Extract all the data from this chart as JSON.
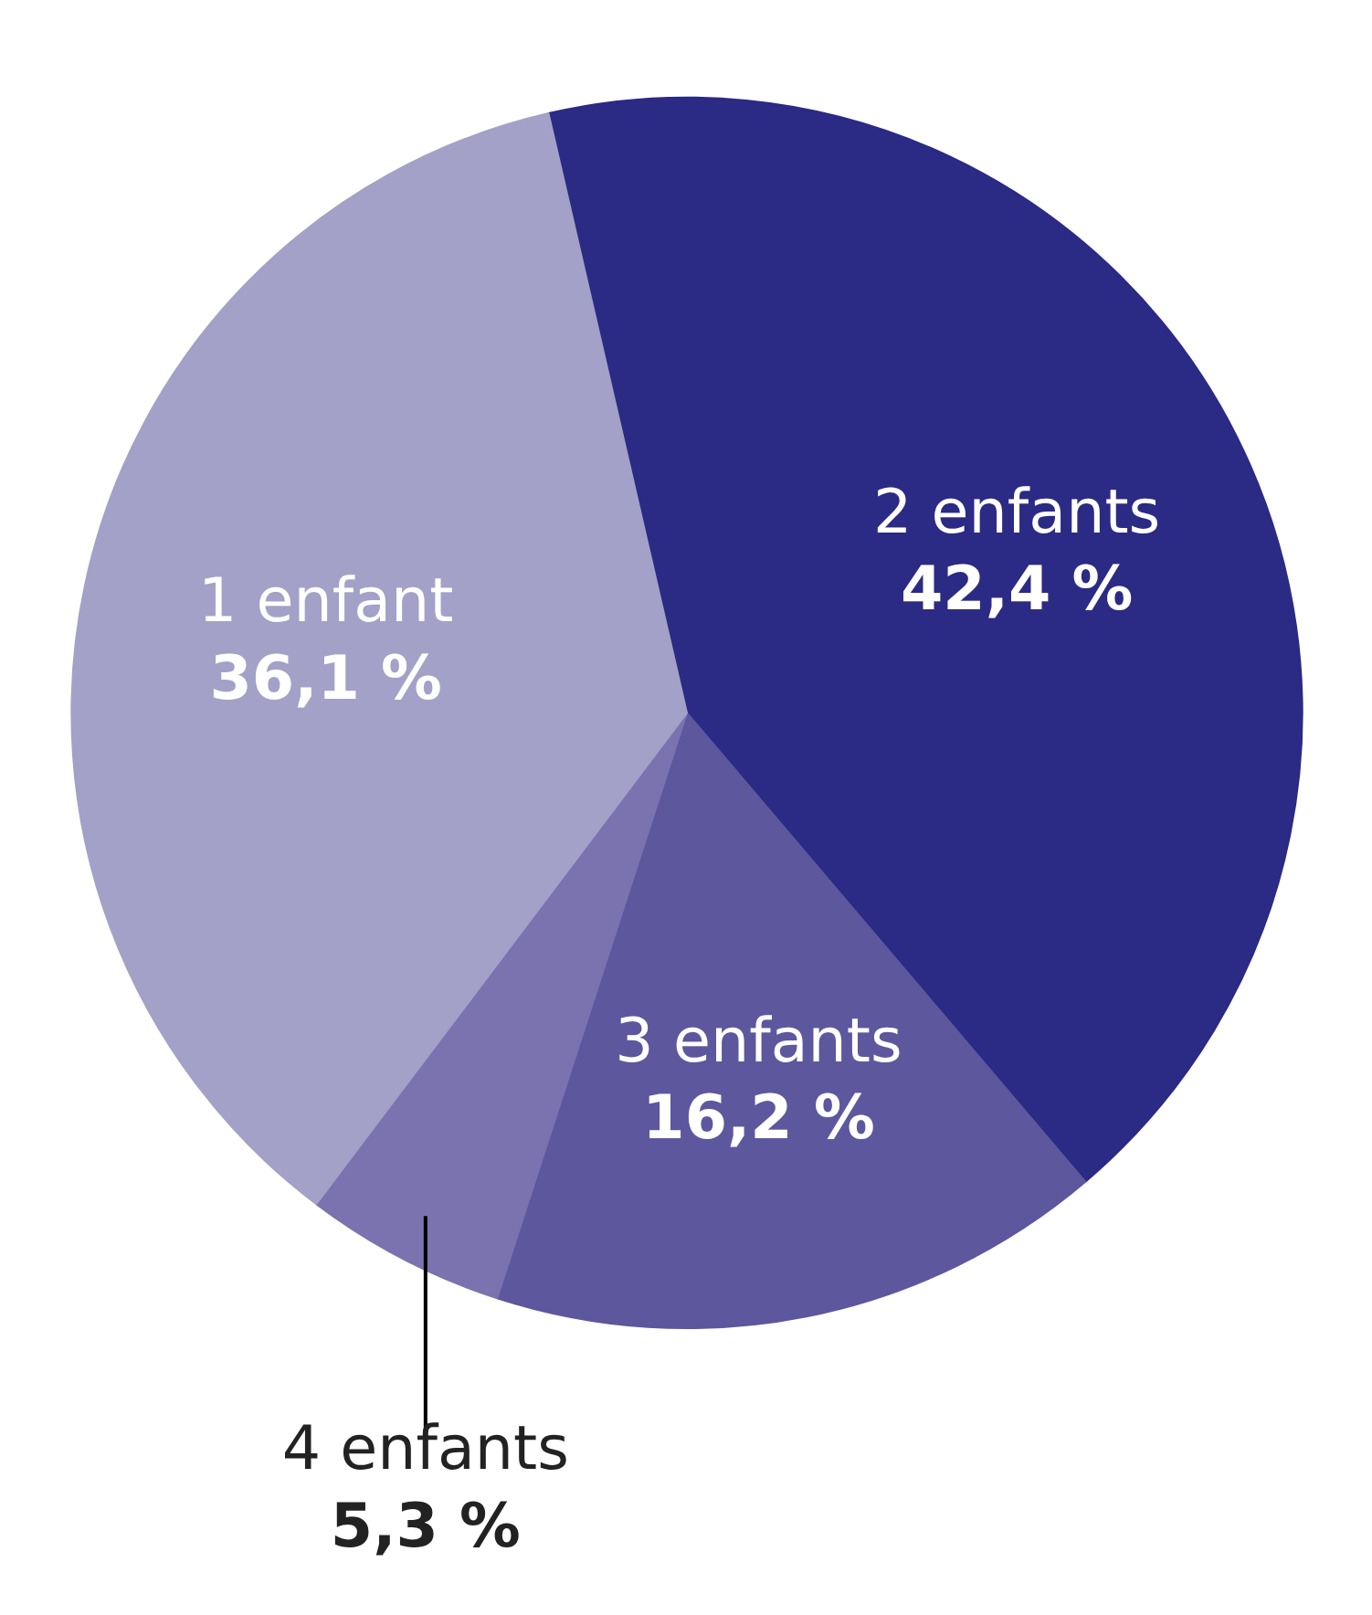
{
  "chart_data": {
    "type": "pie",
    "categories": [
      "2 enfants",
      "3 enfants",
      "4 enfants",
      "1 enfant"
    ],
    "values": [
      42.4,
      16.2,
      5.3,
      36.1
    ],
    "colors": [
      "#2b2a84",
      "#5d579e",
      "#7b72b0",
      "#a3a1c8"
    ],
    "value_labels": [
      "42,4 %",
      "16,2 %",
      "5,3 %",
      "36,1 %"
    ]
  }
}
